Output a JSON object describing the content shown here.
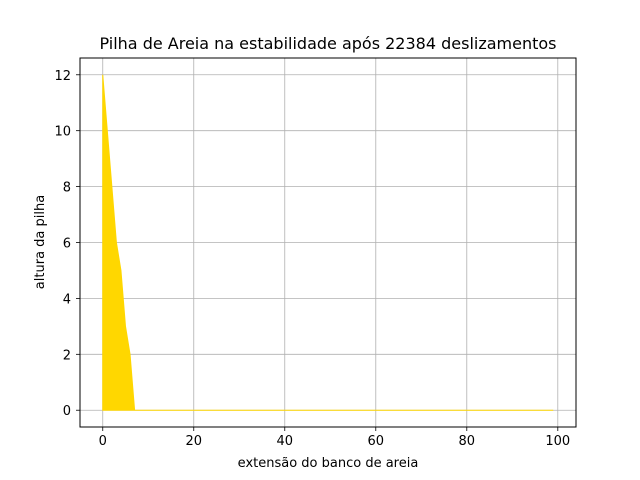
{
  "chart_data": {
    "type": "area",
    "title": "Pilha de Areia na estabilidade após 22384 deslizamentos",
    "xlabel": "extensão do banco de areia",
    "ylabel": "altura da pilha",
    "x_start": 0,
    "x_end": 99,
    "xlim": [
      -5,
      104
    ],
    "ylim": [
      -0.6,
      12.6
    ],
    "xticks": [
      0,
      20,
      40,
      60,
      80,
      100
    ],
    "yticks": [
      0,
      2,
      4,
      6,
      8,
      10,
      12
    ],
    "grid": true,
    "fill_color": "#ffd700",
    "series": [
      {
        "x": [
          0,
          1,
          2,
          3,
          4,
          5,
          6,
          7,
          8,
          99
        ],
        "y": [
          12,
          10,
          8,
          6,
          5,
          3,
          2,
          0,
          0,
          0
        ]
      }
    ]
  }
}
